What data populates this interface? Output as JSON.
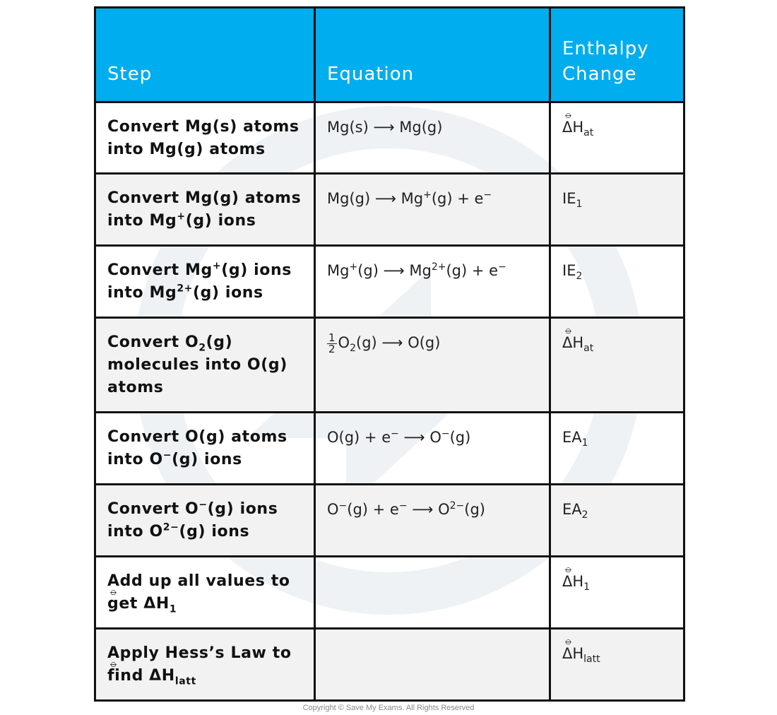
{
  "headers": {
    "step": "Step",
    "equation": "Equation",
    "enthalpy_line1": "Enthalpy",
    "enthalpy_line2": "Change"
  },
  "rows": [
    {
      "step_a": "Convert Mg(s) atoms",
      "step_b": "into  Mg(g) atoms",
      "eq_left": "Mg(s)",
      "eq_right": "Mg(g)",
      "enthalpy": "ΔH",
      "enthalpy_sub": "at"
    },
    {
      "step_a": "Convert Mg(g) atoms",
      "step_b_pre": "into Mg",
      "step_b_sup": "+",
      "step_b_post": "(g) ions",
      "eq_left": "Mg(g)",
      "eq_right_pre": "Mg",
      "eq_right_sup": "+",
      "eq_right_post": "(g)  +  e",
      "eq_right_sup2": "−",
      "enthalpy": "IE",
      "enthalpy_sub": "1"
    },
    {
      "step_a_pre": "Convert Mg",
      "step_a_sup": "+",
      "step_a_post": "(g) ions",
      "step_b_pre": "into Mg",
      "step_b_sup": "2+",
      "step_b_post": "(g) ions",
      "eq_left_pre": "Mg",
      "eq_left_sup": "+",
      "eq_left_post": "(g)",
      "eq_right_pre": "Mg",
      "eq_right_sup": "2+",
      "eq_right_post": "(g)  + e",
      "eq_right_sup2": "−",
      "enthalpy": "IE",
      "enthalpy_sub": "2"
    },
    {
      "step_a_pre": "Convert O",
      "step_a_sub": "2",
      "step_a_post": "(g)",
      "step_b": "molecules into O(g)",
      "step_c": "atoms",
      "eq_frac_num": "1",
      "eq_frac_den": "2",
      "eq_left_pre": "O",
      "eq_left_sub": "2",
      "eq_left_post": "(g)",
      "eq_right": "O(g)",
      "enthalpy": "ΔH",
      "enthalpy_sub": "at"
    },
    {
      "step_a": "Convert O(g) atoms",
      "step_b_pre": "into O",
      "step_b_sup": "−",
      "step_b_post": "(g) ions",
      "eq_left": "O(g) + e",
      "eq_left_sup": "−",
      "eq_right_pre": "O",
      "eq_right_sup": "−",
      "eq_right_post": "(g)",
      "enthalpy": "EA",
      "enthalpy_sub": "1"
    },
    {
      "step_a_pre": "Convert O",
      "step_a_sup": "−",
      "step_a_post": "(g) ions",
      "step_b_pre": "into O",
      "step_b_sup": "2−",
      "step_b_post": "(g) ions",
      "eq_left_pre": "O",
      "eq_left_sup": "−",
      "eq_left_post": "(g) + e",
      "eq_left_sup2": "−",
      "eq_right_pre": "O",
      "eq_right_sup": "2−",
      "eq_right_post": "(g)",
      "enthalpy": "EA",
      "enthalpy_sub": "2"
    },
    {
      "step_a": "Add up all values to",
      "step_b_pre": "get ΔH",
      "step_b_sub": "1",
      "enthalpy": "ΔH",
      "enthalpy_sub": "1"
    },
    {
      "step_a": "Apply Hess’s Law to",
      "step_b_pre": "find ΔH",
      "step_b_sub": "latt",
      "enthalpy": "ΔH",
      "enthalpy_sub": "latt"
    }
  ],
  "arrow": "⟶",
  "copyright": "Copyright © Save My Exams. All Rights Reserved",
  "colors": {
    "header_bg": "#00adee",
    "alt_row_bg": "#f2f2f2",
    "border": "#111111"
  }
}
